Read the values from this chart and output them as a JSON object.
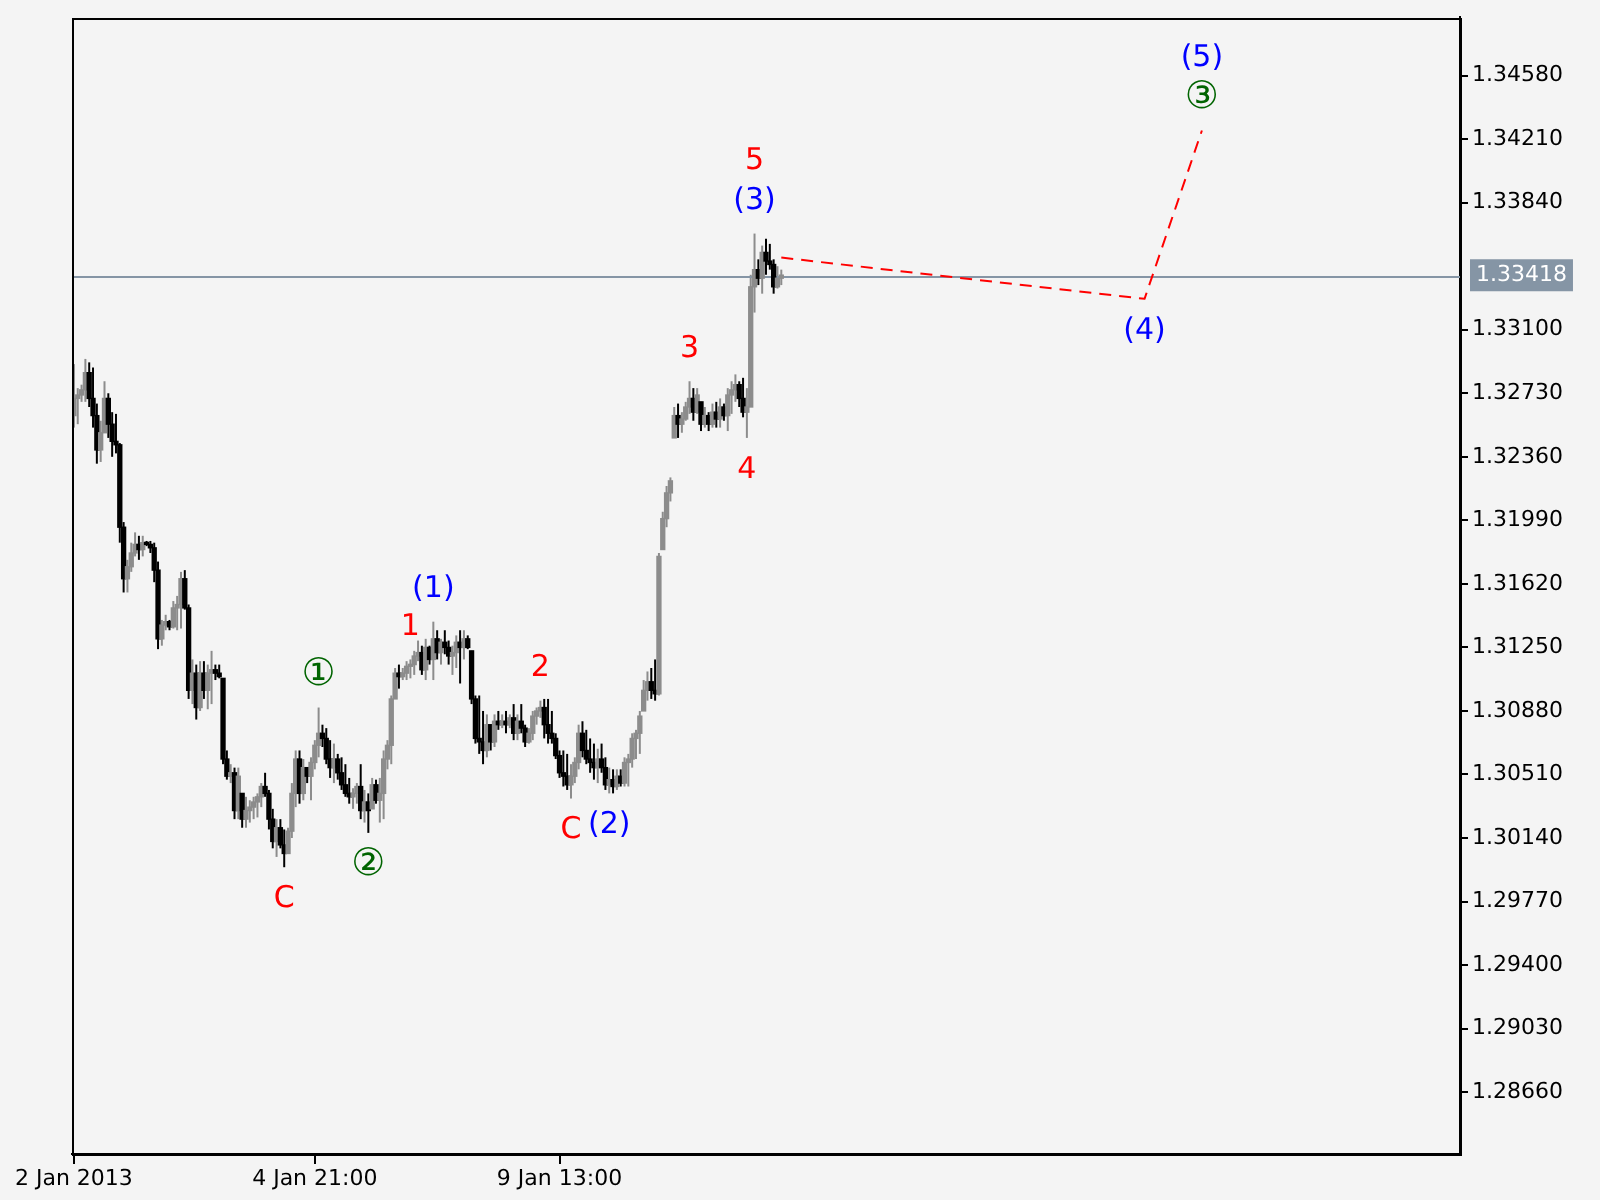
{
  "chart_data": {
    "type": "candlestick",
    "categories": [
      "2 Jan 2013",
      null,
      null,
      null,
      null,
      null,
      null,
      null,
      null,
      null,
      null,
      null,
      null,
      null,
      null,
      null,
      null,
      null,
      null,
      null,
      null,
      null,
      null,
      null,
      null,
      null,
      null,
      null,
      null,
      null,
      null,
      null,
      null,
      null,
      null,
      null,
      null,
      null,
      null,
      null,
      null,
      null,
      null,
      null,
      null,
      null,
      null,
      null,
      null,
      null,
      null,
      null,
      null,
      null,
      null,
      null,
      null,
      null,
      null,
      null,
      null,
      null,
      null,
      "4 Jan 21:00",
      null,
      null,
      null,
      null,
      null,
      null,
      null,
      null,
      null,
      null,
      null,
      null,
      null,
      null,
      null,
      null,
      null,
      null,
      null,
      null,
      null,
      null,
      null,
      null,
      null,
      null,
      null,
      null,
      null,
      null,
      null,
      null,
      null,
      null,
      null,
      null,
      null,
      null,
      null,
      null,
      null,
      null,
      null,
      null,
      null,
      null,
      null,
      null,
      null,
      null,
      null,
      null,
      null,
      null,
      null,
      null,
      null,
      null,
      null,
      null,
      null,
      null,
      null,
      "9 Jan 13:00",
      null,
      null,
      null,
      null,
      null,
      null,
      null,
      null,
      null,
      null,
      null,
      null,
      null,
      null,
      null,
      null,
      null,
      null,
      null,
      null,
      null,
      null,
      null,
      null,
      null,
      null,
      null,
      null,
      null,
      null,
      null,
      null,
      null,
      null,
      null,
      null,
      null,
      null,
      null,
      null,
      null,
      null,
      null,
      null,
      null,
      null,
      null,
      null,
      null,
      null,
      null,
      null,
      null,
      null,
      null,
      null,
      null,
      null,
      null,
      null,
      null,
      null,
      null,
      null,
      null,
      null,
      null,
      null,
      null,
      null,
      null,
      null,
      null,
      null,
      null,
      null,
      null,
      null,
      null,
      null,
      null,
      null,
      null,
      null,
      null,
      null,
      null,
      null,
      null,
      null,
      null,
      null,
      null,
      null,
      null,
      null,
      null,
      null,
      null,
      null,
      null,
      null,
      null,
      null,
      null,
      null,
      null,
      null,
      null,
      null,
      null,
      null,
      null,
      null,
      null,
      null,
      null,
      null,
      null,
      null,
      null,
      null,
      null,
      null,
      null,
      null,
      null,
      null,
      null,
      null,
      null,
      null,
      null,
      null,
      null,
      null,
      null,
      null,
      null,
      null,
      null,
      null,
      null,
      null,
      null,
      null,
      null,
      null,
      null,
      null,
      null,
      null,
      null,
      null,
      null,
      null,
      null,
      null,
      null,
      null,
      null,
      null,
      null,
      null,
      null,
      null,
      null,
      null,
      null,
      null,
      null,
      null,
      null,
      null,
      null,
      null,
      null,
      null,
      null,
      null,
      null,
      null,
      null,
      null,
      null,
      null,
      null,
      null,
      null,
      null,
      null,
      null,
      null,
      null,
      null,
      null,
      null,
      null,
      null,
      null,
      null,
      null,
      null,
      null,
      null,
      null,
      null,
      null,
      null,
      null,
      null,
      null,
      null,
      null,
      null,
      null,
      null,
      null,
      null,
      null,
      null,
      null,
      null,
      null,
      null,
      null,
      null,
      null,
      null,
      null,
      null,
      null,
      null,
      null,
      null
    ],
    "ohlc": [
      [
        1.326,
        1.329,
        1.3253,
        1.327
      ],
      [
        1.327,
        1.3276,
        1.3255,
        1.3272
      ],
      [
        1.3272,
        1.3278,
        1.3268,
        1.3275
      ],
      [
        1.3275,
        1.3293,
        1.3268,
        1.3285
      ],
      [
        1.3285,
        1.3291,
        1.3265,
        1.327
      ],
      [
        1.327,
        1.3288,
        1.3253,
        1.326
      ],
      [
        1.326,
        1.3267,
        1.3232,
        1.324
      ],
      [
        1.324,
        1.3257,
        1.3233,
        1.325
      ],
      [
        1.325,
        1.328,
        1.325,
        1.327
      ],
      [
        1.327,
        1.3273,
        1.3247,
        1.3255
      ],
      [
        1.3255,
        1.3262,
        1.3236,
        1.3245
      ],
      [
        1.3245,
        1.3261,
        1.3238,
        1.3243
      ],
      [
        1.3243,
        1.3244,
        1.3186,
        1.3195
      ],
      [
        1.3195,
        1.3198,
        1.3157,
        1.3165
      ],
      [
        1.3165,
        1.3176,
        1.3157,
        1.3172
      ],
      [
        1.3172,
        1.3186,
        1.3169,
        1.318
      ],
      [
        1.318,
        1.3192,
        1.3178,
        1.3185
      ],
      [
        1.3185,
        1.319,
        1.3176,
        1.3182
      ],
      [
        1.3182,
        1.319,
        1.3178,
        1.3186
      ],
      [
        1.3186,
        1.3187,
        1.3184,
        1.3185
      ],
      [
        1.3185,
        1.3187,
        1.318,
        1.3183
      ],
      [
        1.3183,
        1.3186,
        1.3163,
        1.317
      ],
      [
        1.317,
        1.3175,
        1.3124,
        1.313
      ],
      [
        1.313,
        1.3141,
        1.3126,
        1.3138
      ],
      [
        1.3138,
        1.3144,
        1.3135,
        1.314
      ],
      [
        1.314,
        1.3141,
        1.3135,
        1.3137
      ],
      [
        1.3137,
        1.3152,
        1.3136,
        1.3148
      ],
      [
        1.3148,
        1.3155,
        1.3135,
        1.315
      ],
      [
        1.315,
        1.3169,
        1.3136,
        1.3165
      ],
      [
        1.3165,
        1.317,
        1.3147,
        1.3148
      ],
      [
        1.3148,
        1.315,
        1.3095,
        1.31
      ],
      [
        1.31,
        1.3118,
        1.3092,
        1.311
      ],
      [
        1.311,
        1.3115,
        1.3083,
        1.309
      ],
      [
        1.309,
        1.3117,
        1.3088,
        1.311
      ],
      [
        1.311,
        1.3117,
        1.3095,
        1.31
      ],
      [
        1.31,
        1.3115,
        1.3089,
        1.311
      ],
      [
        1.311,
        1.3123,
        1.3092,
        1.3112
      ],
      [
        1.3112,
        1.3115,
        1.3106,
        1.311
      ],
      [
        1.311,
        1.3115,
        1.3107,
        1.3108
      ],
      [
        1.3107,
        1.3107,
        1.3057,
        1.306
      ],
      [
        1.306,
        1.3065,
        1.3048,
        1.305
      ],
      [
        1.305,
        1.3057,
        1.3046,
        1.3052
      ],
      [
        1.3052,
        1.3055,
        1.3025,
        1.303
      ],
      [
        1.303,
        1.3055,
        1.3025,
        1.305
      ],
      [
        1.304,
        1.304,
        1.302,
        1.3025
      ],
      [
        1.3025,
        1.3038,
        1.302,
        1.303
      ],
      [
        1.303,
        1.3036,
        1.3023,
        1.3032
      ],
      [
        1.3032,
        1.3038,
        1.3025,
        1.3035
      ],
      [
        1.3035,
        1.304,
        1.3026,
        1.3038
      ],
      [
        1.3038,
        1.3046,
        1.3032,
        1.3044
      ],
      [
        1.3044,
        1.3052,
        1.3038,
        1.304
      ],
      [
        1.304,
        1.3042,
        1.3019,
        1.3025
      ],
      [
        1.3025,
        1.3031,
        1.3008,
        1.3012
      ],
      [
        1.3012,
        1.3025,
        1.3003,
        1.302
      ],
      [
        1.302,
        1.3025,
        1.3008,
        1.301
      ],
      [
        1.301,
        1.3019,
        1.2997,
        1.3005
      ],
      [
        1.3005,
        1.302,
        1.3005,
        1.3018
      ],
      [
        1.3018,
        1.3046,
        1.3014,
        1.304
      ],
      [
        1.304,
        1.3065,
        1.3032,
        1.306
      ],
      [
        1.306,
        1.3065,
        1.3034,
        1.304
      ],
      [
        1.304,
        1.306,
        1.3036,
        1.3055
      ],
      [
        1.3055,
        1.3055,
        1.3046,
        1.305
      ],
      [
        1.305,
        1.3061,
        1.3036,
        1.3058
      ],
      [
        1.3058,
        1.3071,
        1.3054,
        1.3068
      ],
      [
        1.3068,
        1.309,
        1.3061,
        1.3075
      ],
      [
        1.3075,
        1.308,
        1.3067,
        1.3072
      ],
      [
        1.3072,
        1.3078,
        1.3057,
        1.306
      ],
      [
        1.306,
        1.3071,
        1.3049,
        1.3055
      ],
      [
        1.3055,
        1.3069,
        1.3046,
        1.306
      ],
      [
        1.306,
        1.3063,
        1.3048,
        1.3052
      ],
      [
        1.3052,
        1.3061,
        1.3042,
        1.3045
      ],
      [
        1.3045,
        1.3057,
        1.3038,
        1.304
      ],
      [
        1.304,
        1.3049,
        1.3034,
        1.3038
      ],
      [
        1.3038,
        1.3043,
        1.3031,
        1.304
      ],
      [
        1.304,
        1.3046,
        1.3034,
        1.3044
      ],
      [
        1.3044,
        1.3057,
        1.3025,
        1.303
      ],
      [
        1.303,
        1.3042,
        1.3023,
        1.3035
      ],
      [
        1.3035,
        1.304,
        1.3017,
        1.303
      ],
      [
        1.3031,
        1.3049,
        1.3031,
        1.3045
      ],
      [
        1.3045,
        1.3048,
        1.3034,
        1.3036
      ],
      [
        1.3036,
        1.3049,
        1.3023,
        1.304
      ],
      [
        1.304,
        1.3065,
        1.3025,
        1.306
      ],
      [
        1.306,
        1.3071,
        1.3054,
        1.3068
      ],
      [
        1.3068,
        1.3097,
        1.3057,
        1.3095
      ],
      [
        1.3095,
        1.3113,
        1.3095,
        1.311
      ],
      [
        1.311,
        1.3115,
        1.3101,
        1.3108
      ],
      [
        1.3108,
        1.3113,
        1.3106,
        1.311
      ],
      [
        1.311,
        1.3117,
        1.3106,
        1.3114
      ],
      [
        1.3114,
        1.3118,
        1.3107,
        1.3115
      ],
      [
        1.3115,
        1.3123,
        1.3109,
        1.312
      ],
      [
        1.312,
        1.3129,
        1.3117,
        1.3122
      ],
      [
        1.3122,
        1.3126,
        1.3109,
        1.3112
      ],
      [
        1.3112,
        1.313,
        1.3106,
        1.3125
      ],
      [
        1.3125,
        1.3126,
        1.3115,
        1.3118
      ],
      [
        1.3118,
        1.314,
        1.3106,
        1.313
      ],
      [
        1.313,
        1.3135,
        1.3118,
        1.3122
      ],
      [
        1.3122,
        1.313,
        1.3115,
        1.3128
      ],
      [
        1.3128,
        1.3135,
        1.3121,
        1.3125
      ],
      [
        1.3125,
        1.3129,
        1.3115,
        1.312
      ],
      [
        1.312,
        1.3126,
        1.3109,
        1.3122
      ],
      [
        1.3122,
        1.3132,
        1.3113,
        1.3128
      ],
      [
        1.3128,
        1.3135,
        1.3104,
        1.3125
      ],
      [
        1.3125,
        1.3135,
        1.3118,
        1.313
      ],
      [
        1.313,
        1.3132,
        1.3124,
        1.3125
      ],
      [
        1.3123,
        1.3123,
        1.3092,
        1.3095
      ],
      [
        1.3095,
        1.3097,
        1.3069,
        1.3072
      ],
      [
        1.3072,
        1.3097,
        1.3063,
        1.307
      ],
      [
        1.307,
        1.3088,
        1.3057,
        1.3065
      ],
      [
        1.3065,
        1.3086,
        1.3061,
        1.308
      ],
      [
        1.308,
        1.308,
        1.3065,
        1.307
      ],
      [
        1.307,
        1.3086,
        1.3067,
        1.3082
      ],
      [
        1.3082,
        1.3088,
        1.3077,
        1.308
      ],
      [
        1.308,
        1.3086,
        1.3078,
        1.3082
      ],
      [
        1.3082,
        1.3088,
        1.3075,
        1.308
      ],
      [
        1.308,
        1.3086,
        1.3078,
        1.3084
      ],
      [
        1.3084,
        1.3092,
        1.3071,
        1.3075
      ],
      [
        1.3075,
        1.3086,
        1.3071,
        1.3082
      ],
      [
        1.3082,
        1.3092,
        1.3075,
        1.3078
      ],
      [
        1.3078,
        1.308,
        1.3067,
        1.307
      ],
      [
        1.307,
        1.3078,
        1.3069,
        1.3075
      ],
      [
        1.3075,
        1.3088,
        1.3071,
        1.3085
      ],
      [
        1.3085,
        1.309,
        1.308,
        1.3088
      ],
      [
        1.3088,
        1.3094,
        1.3084,
        1.309
      ],
      [
        1.309,
        1.3095,
        1.3072,
        1.308
      ],
      [
        1.308,
        1.3095,
        1.3069,
        1.3075
      ],
      [
        1.3075,
        1.3088,
        1.3069,
        1.3072
      ],
      [
        1.3072,
        1.3075,
        1.306,
        1.3062
      ],
      [
        1.3062,
        1.3065,
        1.3049,
        1.3052
      ],
      [
        1.3052,
        1.3065,
        1.3044,
        1.305
      ],
      [
        1.305,
        1.3063,
        1.3042,
        1.3045
      ],
      [
        1.3045,
        1.3057,
        1.3037,
        1.305
      ],
      [
        1.305,
        1.3061,
        1.3046,
        1.3058
      ],
      [
        1.3058,
        1.308,
        1.3054,
        1.3075
      ],
      [
        1.3075,
        1.3082,
        1.3061,
        1.3065
      ],
      [
        1.3065,
        1.3077,
        1.3057,
        1.306
      ],
      [
        1.306,
        1.3072,
        1.3052,
        1.3058
      ],
      [
        1.3058,
        1.3069,
        1.3048,
        1.3055
      ],
      [
        1.3055,
        1.3066,
        1.3046,
        1.306
      ],
      [
        1.306,
        1.3069,
        1.3052,
        1.3055
      ],
      [
        1.3055,
        1.3061,
        1.3042,
        1.3045
      ],
      [
        1.3045,
        1.3055,
        1.304,
        1.3048
      ],
      [
        1.3048,
        1.3054,
        1.304,
        1.3044
      ],
      [
        1.3044,
        1.3054,
        1.3042,
        1.305
      ],
      [
        1.305,
        1.3054,
        1.3044,
        1.3046
      ],
      [
        1.3046,
        1.3061,
        1.3044,
        1.3058
      ],
      [
        1.3058,
        1.3063,
        1.3044,
        1.306
      ],
      [
        1.306,
        1.3075,
        1.3055,
        1.3072
      ],
      [
        1.3072,
        1.3077,
        1.306,
        1.3075
      ],
      [
        1.3075,
        1.3088,
        1.3063,
        1.3085
      ],
      [
        1.3088,
        1.3106,
        1.3088,
        1.31
      ],
      [
        1.31,
        1.3111,
        1.3094,
        1.3105
      ],
      [
        1.3105,
        1.3113,
        1.3095,
        1.31
      ],
      [
        1.31,
        1.3118,
        1.3094,
        1.3098
      ],
      [
        1.3098,
        1.318,
        1.3097,
        1.3178
      ],
      [
        1.3182,
        1.3204,
        1.3182,
        1.32
      ],
      [
        1.32,
        1.3219,
        1.3195,
        1.3215
      ],
      [
        1.3215,
        1.3224,
        1.321,
        1.3222
      ],
      [
        1.3247,
        1.3265,
        1.3247,
        1.326
      ],
      [
        1.326,
        1.3267,
        1.3247,
        1.3255
      ],
      [
        1.3255,
        1.3262,
        1.325,
        1.3258
      ],
      [
        1.3258,
        1.3268,
        1.3257,
        1.3265
      ],
      [
        1.3265,
        1.328,
        1.3261,
        1.327
      ],
      [
        1.327,
        1.3276,
        1.3257,
        1.3262
      ],
      [
        1.3262,
        1.3276,
        1.3261,
        1.3272
      ],
      [
        1.3268,
        1.3268,
        1.3251,
        1.3255
      ],
      [
        1.3255,
        1.3265,
        1.3253,
        1.326
      ],
      [
        1.326,
        1.3262,
        1.3251,
        1.3255
      ],
      [
        1.3255,
        1.3267,
        1.3253,
        1.3262
      ],
      [
        1.3262,
        1.3268,
        1.3253,
        1.3258
      ],
      [
        1.3258,
        1.327,
        1.3253,
        1.3265
      ],
      [
        1.3265,
        1.3267,
        1.3257,
        1.326
      ],
      [
        1.326,
        1.3276,
        1.3251,
        1.3272
      ],
      [
        1.3272,
        1.328,
        1.3261,
        1.3275
      ],
      [
        1.3275,
        1.3284,
        1.3268,
        1.3278
      ],
      [
        1.3278,
        1.328,
        1.3265,
        1.327
      ],
      [
        1.327,
        1.3282,
        1.3259,
        1.3262
      ],
      [
        1.3262,
        1.3276,
        1.3247,
        1.3265
      ],
      [
        1.3265,
        1.3342,
        1.3265,
        1.3335
      ],
      [
        1.3335,
        1.3366,
        1.332,
        1.3345
      ],
      [
        1.3345,
        1.3351,
        1.3336,
        1.334
      ],
      [
        1.334,
        1.3359,
        1.3331,
        1.3355
      ],
      [
        1.3355,
        1.3363,
        1.3342,
        1.335
      ],
      [
        1.335,
        1.336,
        1.3345,
        1.3348
      ],
      [
        1.3348,
        1.3351,
        1.3331,
        1.3335
      ],
      [
        1.3335,
        1.3347,
        1.3334,
        1.334
      ],
      [
        1.334,
        1.3345,
        1.3336,
        1.33418
      ],
      null,
      null,
      null,
      null,
      null,
      null,
      null,
      null,
      null,
      null,
      null,
      null,
      null,
      null,
      null,
      null,
      null,
      null,
      null,
      null,
      null,
      null,
      null,
      null,
      null,
      null,
      null,
      null,
      null,
      null,
      null,
      null,
      null,
      null,
      null,
      null,
      null,
      null,
      null,
      null,
      null,
      null,
      null,
      null,
      null,
      null,
      null,
      null,
      null,
      null,
      null,
      null,
      null,
      null,
      null,
      null,
      null,
      null,
      null,
      null,
      null,
      null,
      null,
      null,
      null,
      null,
      null,
      null,
      null,
      null,
      null,
      null,
      null,
      null,
      null,
      null,
      null,
      null,
      null,
      null,
      null,
      null,
      null,
      null,
      null,
      null,
      null,
      null,
      null,
      null,
      null,
      null,
      null,
      null,
      null,
      null,
      null,
      null,
      null,
      null,
      null,
      null,
      null,
      null,
      null,
      null,
      null,
      null,
      null,
      null,
      null,
      null,
      null,
      null,
      null,
      null,
      null,
      null,
      null,
      null,
      null,
      null,
      null,
      null,
      null,
      null,
      null,
      null,
      null,
      null,
      null,
      null,
      null,
      null,
      null,
      null,
      null,
      null,
      null,
      null,
      null,
      null,
      null,
      null,
      null,
      null,
      null,
      null,
      null,
      null,
      null,
      null,
      null,
      null,
      null,
      null,
      null,
      null,
      null,
      null,
      null,
      null,
      null,
      null,
      null,
      null,
      null,
      null,
      null,
      null,
      null,
      null,
      null,
      null,
      null,
      null,
      null
    ],
    "series": [
      {
        "type": "line",
        "color": "#ff0000",
        "line_style": "dashed",
        "marker": "none",
        "values": [
          null,
          null,
          null,
          null,
          null,
          null,
          null,
          null,
          null,
          null,
          null,
          null,
          null,
          null,
          null,
          null,
          null,
          null,
          null,
          null,
          null,
          null,
          null,
          null,
          null,
          null,
          null,
          null,
          null,
          null,
          null,
          null,
          null,
          null,
          null,
          null,
          null,
          null,
          null,
          null,
          null,
          null,
          null,
          null,
          null,
          null,
          null,
          null,
          null,
          null,
          null,
          null,
          null,
          null,
          null,
          null,
          null,
          null,
          null,
          null,
          null,
          null,
          null,
          null,
          null,
          null,
          null,
          null,
          null,
          null,
          null,
          null,
          null,
          null,
          null,
          null,
          null,
          null,
          null,
          null,
          null,
          null,
          null,
          null,
          null,
          null,
          null,
          null,
          null,
          null,
          null,
          null,
          null,
          null,
          null,
          null,
          null,
          null,
          null,
          null,
          null,
          null,
          null,
          null,
          null,
          null,
          null,
          null,
          null,
          null,
          null,
          null,
          null,
          null,
          null,
          null,
          null,
          null,
          null,
          null,
          null,
          null,
          null,
          null,
          null,
          null,
          null,
          null,
          null,
          null,
          null,
          null,
          null,
          null,
          null,
          null,
          null,
          null,
          null,
          null,
          null,
          null,
          null,
          null,
          null,
          null,
          null,
          null,
          null,
          null,
          null,
          null,
          null,
          null,
          null,
          null,
          null,
          null,
          null,
          null,
          null,
          null,
          null,
          null,
          null,
          null,
          null,
          null,
          null,
          null,
          null,
          null,
          null,
          null,
          null,
          null,
          null,
          null,
          null,
          null,
          null,
          null,
          null,
          null,
          null,
          1.3352,
          null,
          null,
          null,
          null,
          null,
          null,
          null,
          null,
          null,
          null,
          null,
          null,
          null,
          null,
          null,
          null,
          null,
          null,
          null,
          null,
          null,
          null,
          null,
          null,
          null,
          null,
          null,
          null,
          null,
          null,
          null,
          null,
          null,
          null,
          null,
          null,
          null,
          null,
          null,
          null,
          null,
          null,
          null,
          null,
          null,
          null,
          null,
          null,
          null,
          null,
          null,
          null,
          null,
          null,
          null,
          null,
          null,
          null,
          null,
          null,
          null,
          null,
          null,
          null,
          null,
          null,
          null,
          null,
          null,
          null,
          null,
          null,
          null,
          null,
          null,
          null,
          null,
          null,
          null,
          null,
          null,
          null,
          null,
          null,
          null,
          null,
          null,
          null,
          null,
          null,
          null,
          null,
          null,
          null,
          1.3328,
          null,
          null,
          null,
          null,
          null,
          null,
          null,
          null,
          null,
          null,
          null,
          null,
          null,
          null,
          1.3426,
          null,
          null,
          null,
          null,
          null,
          null,
          null,
          null,
          null,
          null,
          null,
          null,
          null,
          null,
          null,
          null,
          null,
          null,
          null,
          null,
          null,
          null,
          null,
          null,
          null,
          null,
          null,
          null,
          null,
          null,
          null,
          null,
          null,
          null,
          null,
          null,
          null,
          null,
          null,
          null,
          null,
          null,
          null,
          null,
          null,
          null,
          null,
          null,
          null,
          null,
          null,
          null,
          null,
          null,
          null,
          null,
          null,
          null,
          null,
          null,
          null,
          null,
          null,
          null,
          null,
          null,
          null
        ]
      }
    ],
    "ylim": [
      1.283,
      1.3492
    ],
    "yticks": [
      {
        "value": 1.3458,
        "label": "1.34580"
      },
      {
        "value": 1.3421,
        "label": "1.34210"
      },
      {
        "value": 1.3384,
        "label": "1.33840"
      },
      {
        "value": 1.331,
        "label": "1.33100"
      },
      {
        "value": 1.3273,
        "label": "1.32730"
      },
      {
        "value": 1.3236,
        "label": "1.32360"
      },
      {
        "value": 1.3199,
        "label": "1.31990"
      },
      {
        "value": 1.3162,
        "label": "1.31620"
      },
      {
        "value": 1.3125,
        "label": "1.31250"
      },
      {
        "value": 1.3088,
        "label": "1.30880"
      },
      {
        "value": 1.3051,
        "label": "1.30510"
      },
      {
        "value": 1.3014,
        "label": "1.30140"
      },
      {
        "value": 1.2977,
        "label": "1.29770"
      },
      {
        "value": 1.294,
        "label": "1.29400"
      },
      {
        "value": 1.2903,
        "label": "1.29030"
      },
      {
        "value": 1.2866,
        "label": "1.28660"
      }
    ],
    "ref_lines": [
      {
        "axis": "y",
        "value": 1.33418,
        "label": "1.33418",
        "color": "#8595a5"
      }
    ],
    "annotations": [
      {
        "text": "①",
        "y": 1.309
      },
      {
        "text": "②",
        "y": 1.3017
      },
      {
        "text": "③",
        "y": 1.3426
      },
      {
        "text": "(1)",
        "y": 1.314
      },
      {
        "text": "(2)",
        "y": 1.304
      },
      {
        "text": "(3)",
        "y": 1.3366
      },
      {
        "text": "(4)",
        "y": 1.3328
      },
      {
        "text": "(5)",
        "y": 1.3426
      },
      {
        "text": "C",
        "y": 1.2997
      },
      {
        "text": "C",
        "y": 1.3037
      },
      {
        "text": "1",
        "y": 1.3118
      },
      {
        "text": "2",
        "y": 1.3094
      },
      {
        "text": "3",
        "y": 1.328
      },
      {
        "text": "4",
        "y": 1.3247
      },
      {
        "text": "5",
        "y": 1.3366
      }
    ],
    "grid": false,
    "legend": false
  }
}
